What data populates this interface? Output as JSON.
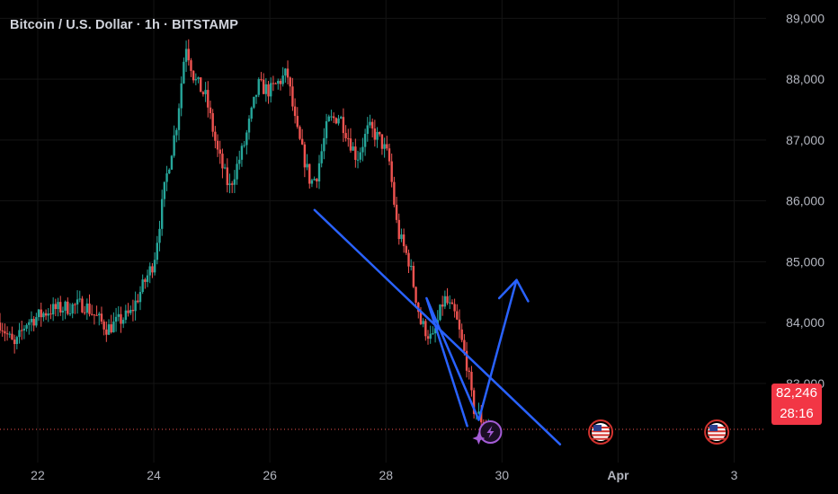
{
  "title": "Bitcoin / U.S. Dollar · 1h · BITSTAMP",
  "current_price": "82,246",
  "countdown": "28:16",
  "colors": {
    "background": "#000000",
    "up": "#26a69a",
    "down": "#ef5350",
    "drawing": "#2962ff",
    "badge": "#f23645",
    "grid": "#141414",
    "axis_text": "#b2b5be"
  },
  "icons": [
    "us-flag-icon",
    "lightning-event-icon"
  ],
  "chart_data": {
    "type": "candlestick",
    "timeframe": "1h",
    "ylim": [
      81700,
      89300
    ],
    "yticks": [
      "89,000",
      "88,000",
      "87,000",
      "86,000",
      "85,000",
      "84,000",
      "83,000"
    ],
    "ytick_values": [
      89000,
      88000,
      87000,
      86000,
      85000,
      84000,
      83000
    ],
    "xtick_labels": [
      "22",
      "24",
      "26",
      "28",
      "30",
      "Apr",
      "3"
    ],
    "xtick_days": [
      22,
      24,
      26,
      28,
      30,
      32,
      34
    ],
    "x_unit": "day of March (Apr 1 = day 32)",
    "xlim": [
      21.35,
      34.55
    ],
    "price_path": [
      [
        21.35,
        84000
      ],
      [
        21.6,
        83600
      ],
      [
        21.8,
        84000
      ],
      [
        22.2,
        84200
      ],
      [
        22.8,
        84300
      ],
      [
        23.2,
        83900
      ],
      [
        23.6,
        84150
      ],
      [
        24.0,
        85000
      ],
      [
        24.2,
        86300
      ],
      [
        24.4,
        87300
      ],
      [
        24.55,
        88600
      ],
      [
        24.7,
        88000
      ],
      [
        24.9,
        87700
      ],
      [
        25.1,
        86800
      ],
      [
        25.3,
        86200
      ],
      [
        25.55,
        86900
      ],
      [
        25.8,
        87900
      ],
      [
        26.0,
        87800
      ],
      [
        26.3,
        88100
      ],
      [
        26.45,
        87200
      ],
      [
        26.7,
        86300
      ],
      [
        26.8,
        86400
      ],
      [
        27.0,
        87300
      ],
      [
        27.2,
        87400
      ],
      [
        27.5,
        86700
      ],
      [
        27.7,
        87200
      ],
      [
        27.9,
        87000
      ],
      [
        28.05,
        86700
      ],
      [
        28.2,
        85500
      ],
      [
        28.4,
        85000
      ],
      [
        28.6,
        84000
      ],
      [
        28.8,
        83700
      ],
      [
        29.0,
        84400
      ],
      [
        29.2,
        84100
      ],
      [
        29.4,
        83300
      ],
      [
        29.5,
        82600
      ],
      [
        29.65,
        82400
      ],
      [
        29.8,
        82300
      ]
    ],
    "current_price": 82246,
    "events": [
      {
        "day": 29.8,
        "icon": "lightning-event-icon"
      },
      {
        "day": 31.7,
        "icon": "us-flag-icon"
      },
      {
        "day": 33.7,
        "icon": "us-flag-icon"
      }
    ],
    "drawings": {
      "trend_line": [
        [
          26.77,
          85850
        ],
        [
          31.0,
          82000
        ]
      ],
      "projection_path": [
        [
          29.4,
          82300
        ],
        [
          28.7,
          84400
        ],
        [
          29.6,
          82400
        ],
        [
          30.25,
          84700
        ]
      ],
      "arrow_head": [
        [
          29.95,
          84400
        ],
        [
          30.25,
          84700
        ],
        [
          30.45,
          84350
        ]
      ]
    }
  }
}
